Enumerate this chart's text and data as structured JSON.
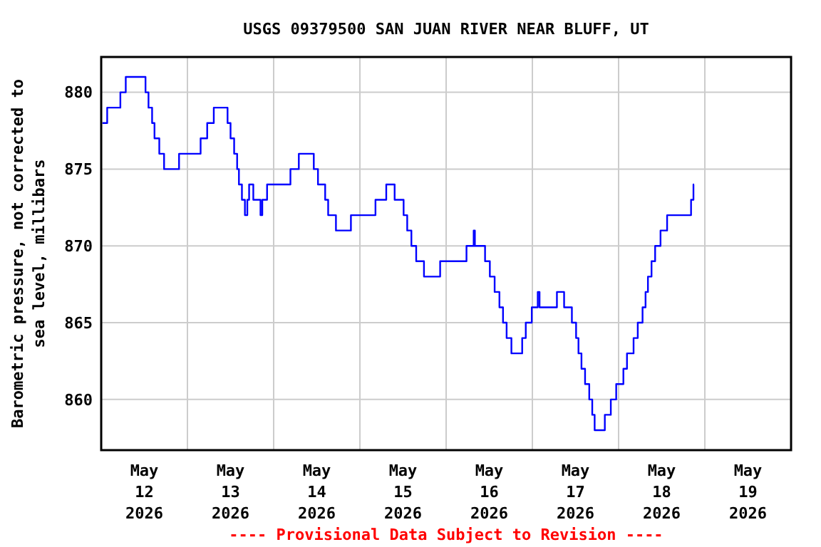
{
  "chart_data": {
    "type": "step",
    "title": "USGS 09379500 SAN JUAN RIVER NEAR BLUFF, UT",
    "ylabel": "Barometric pressure, not corrected to\nsea level, millibars",
    "annotations": [
      "---- Provisional Data Subject to Revision ----"
    ],
    "xlim": [
      "2026-05-12T00:00",
      "2026-05-20T00:00"
    ],
    "xticks": [
      {
        "value": "2026-05-12T12:00",
        "label": "May\n12\n2026"
      },
      {
        "value": "2026-05-13T12:00",
        "label": "May\n13\n2026"
      },
      {
        "value": "2026-05-14T12:00",
        "label": "May\n14\n2026"
      },
      {
        "value": "2026-05-15T12:00",
        "label": "May\n15\n2026"
      },
      {
        "value": "2026-05-16T12:00",
        "label": "May\n16\n2026"
      },
      {
        "value": "2026-05-17T12:00",
        "label": "May\n17\n2026"
      },
      {
        "value": "2026-05-18T12:00",
        "label": "May\n18\n2026"
      },
      {
        "value": "2026-05-19T12:00",
        "label": "May\n19\n2026"
      },
      {
        "value": "2026-05-13T00:00",
        "label": null
      },
      {
        "value": "2026-05-14T00:00",
        "label": null
      },
      {
        "value": "2026-05-15T00:00",
        "label": null
      },
      {
        "value": "2026-05-16T00:00",
        "label": null
      },
      {
        "value": "2026-05-17T00:00",
        "label": null
      },
      {
        "value": "2026-05-18T00:00",
        "label": null
      },
      {
        "value": "2026-05-19T00:00",
        "label": null
      }
    ],
    "ylim": [
      856.7,
      882.3
    ],
    "yticks": [
      860,
      865,
      870,
      875,
      880
    ],
    "grid": true,
    "series": [
      {
        "color": "#0000ff",
        "x": [
          "2026-05-12T00:20",
          "2026-05-12T01:40",
          "2026-05-12T05:20",
          "2026-05-12T06:50",
          "2026-05-12T12:20",
          "2026-05-12T13:10",
          "2026-05-12T14:10",
          "2026-05-12T14:50",
          "2026-05-12T16:10",
          "2026-05-12T17:30",
          "2026-05-12T21:40",
          "2026-05-13T03:40",
          "2026-05-13T05:30",
          "2026-05-13T07:20",
          "2026-05-13T11:10",
          "2026-05-13T12:00",
          "2026-05-13T13:00",
          "2026-05-13T13:50",
          "2026-05-13T14:20",
          "2026-05-13T15:10",
          "2026-05-13T16:00",
          "2026-05-13T16:40",
          "2026-05-13T17:10",
          "2026-05-13T18:20",
          "2026-05-13T20:20",
          "2026-05-13T20:50",
          "2026-05-13T22:10",
          "2026-05-14T04:40",
          "2026-05-14T07:00",
          "2026-05-14T11:10",
          "2026-05-14T12:20",
          "2026-05-14T14:20",
          "2026-05-14T15:10",
          "2026-05-14T17:20",
          "2026-05-14T21:30",
          "2026-05-15T04:20",
          "2026-05-15T07:20",
          "2026-05-15T09:40",
          "2026-05-15T12:10",
          "2026-05-15T13:10",
          "2026-05-15T14:20",
          "2026-05-15T15:40",
          "2026-05-15T17:50",
          "2026-05-15T22:20",
          "2026-05-16T05:40",
          "2026-05-16T07:40",
          "2026-05-16T08:00",
          "2026-05-16T10:50",
          "2026-05-16T12:10",
          "2026-05-16T13:30",
          "2026-05-16T14:50",
          "2026-05-16T15:50",
          "2026-05-16T16:50",
          "2026-05-16T18:10",
          "2026-05-16T21:10",
          "2026-05-16T22:10",
          "2026-05-16T23:50",
          "2026-05-17T01:30",
          "2026-05-17T02:00",
          "2026-05-17T06:50",
          "2026-05-17T08:50",
          "2026-05-17T11:00",
          "2026-05-17T12:10",
          "2026-05-17T12:50",
          "2026-05-17T13:40",
          "2026-05-17T14:40",
          "2026-05-17T15:50",
          "2026-05-17T16:40",
          "2026-05-17T17:20",
          "2026-05-17T20:10",
          "2026-05-17T21:50",
          "2026-05-17T23:20",
          "2026-05-18T01:20",
          "2026-05-18T02:20",
          "2026-05-18T04:10",
          "2026-05-18T05:20",
          "2026-05-18T06:40",
          "2026-05-18T07:30",
          "2026-05-18T08:10",
          "2026-05-18T09:10",
          "2026-05-18T10:10",
          "2026-05-18T11:40",
          "2026-05-18T13:30",
          "2026-05-18T20:10",
          "2026-05-18T20:50",
          "2026-05-18T21:00"
        ],
        "values": [
          878,
          879,
          880,
          881,
          880,
          879,
          878,
          877,
          876,
          875,
          876,
          877,
          878,
          879,
          878,
          877,
          876,
          875,
          874,
          873,
          872,
          873,
          874,
          873,
          872,
          873,
          874,
          875,
          876,
          875,
          874,
          873,
          872,
          871,
          872,
          873,
          874,
          873,
          872,
          871,
          870,
          869,
          868,
          869,
          870,
          871,
          870,
          869,
          868,
          867,
          866,
          865,
          864,
          863,
          864,
          865,
          866,
          867,
          866,
          867,
          866,
          865,
          864,
          863,
          862,
          861,
          860,
          859,
          858,
          859,
          860,
          861,
          862,
          863,
          864,
          865,
          866,
          867,
          868,
          869,
          870,
          871,
          872,
          873,
          874,
          874
        ]
      }
    ]
  }
}
